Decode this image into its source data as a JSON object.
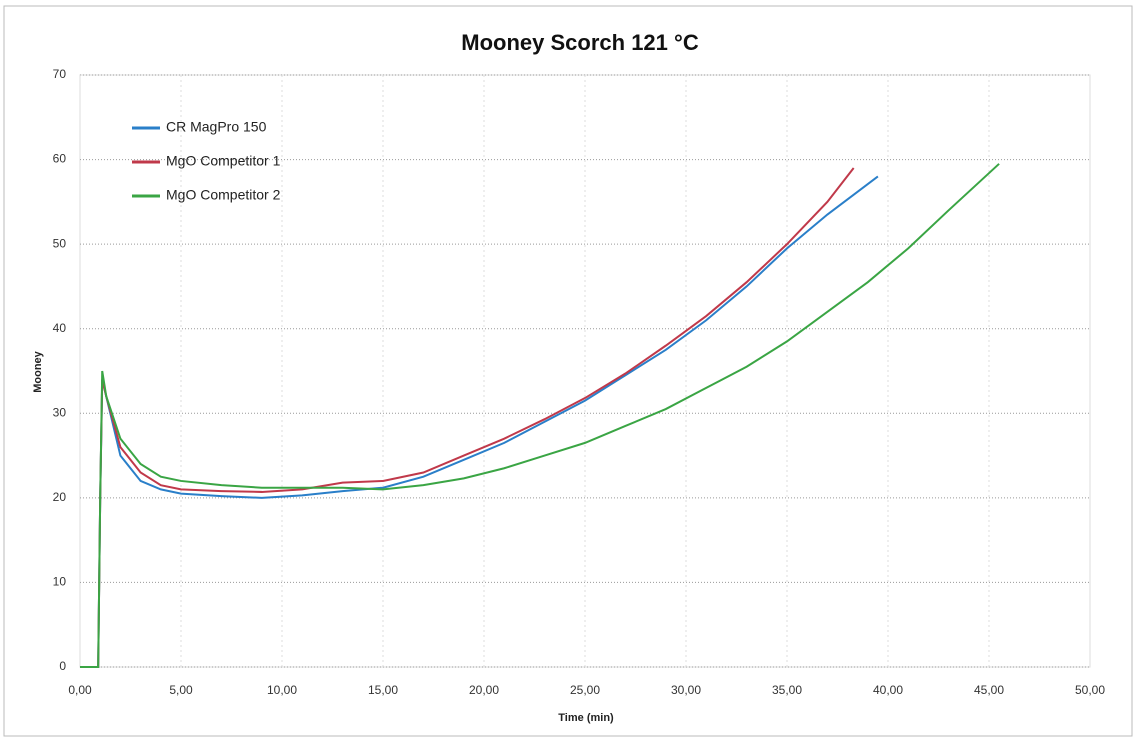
{
  "chart_data": {
    "type": "line",
    "title": "Mooney Scorch 121 °C",
    "xlabel": "Time (min)",
    "ylabel": "Mooney",
    "xlim": [
      0,
      50
    ],
    "xticks": [
      {
        "value": 0,
        "label": "0,00"
      },
      {
        "value": 5,
        "label": "5,00"
      },
      {
        "value": 10,
        "label": "10,00"
      },
      {
        "value": 15,
        "label": "15,00"
      },
      {
        "value": 20,
        "label": "20,00"
      },
      {
        "value": 25,
        "label": "25,00"
      },
      {
        "value": 30,
        "label": "30,00"
      },
      {
        "value": 35,
        "label": "35,00"
      },
      {
        "value": 40,
        "label": "40,00"
      },
      {
        "value": 45,
        "label": "45,00"
      },
      {
        "value": 50,
        "label": "50,00"
      }
    ],
    "ylim": [
      0,
      70
    ],
    "yticks": [
      0,
      10,
      20,
      30,
      40,
      50,
      60,
      70
    ],
    "grid": true,
    "legend": "upper left",
    "series": [
      {
        "name": "CR MagPro 150",
        "color": "#2a7fc9",
        "x": [
          0,
          0.9,
          1.0,
          1.1,
          1.3,
          2,
          3,
          4,
          5,
          7,
          9,
          11,
          13,
          15,
          17,
          19,
          21,
          23,
          25,
          27,
          29,
          31,
          33,
          35,
          37,
          39.5
        ],
        "values": [
          0,
          0,
          20,
          34,
          32,
          25,
          22,
          21,
          20.5,
          20.2,
          20,
          20.3,
          20.8,
          21.2,
          22.5,
          24.5,
          26.5,
          29,
          31.5,
          34.5,
          37.5,
          41,
          45,
          49.5,
          53.5,
          58
        ]
      },
      {
        "name": "MgO Competitor 1",
        "color": "#c0394a",
        "x": [
          0,
          0.9,
          1.0,
          1.1,
          1.3,
          2,
          3,
          4,
          5,
          7,
          9,
          11,
          13,
          15,
          17,
          19,
          21,
          23,
          25,
          27,
          29,
          31,
          33,
          35,
          37,
          38.3
        ],
        "values": [
          0,
          0,
          20,
          34,
          32,
          26,
          23,
          21.5,
          21,
          20.8,
          20.7,
          21,
          21.8,
          22,
          23,
          25,
          27,
          29.3,
          31.8,
          34.7,
          38,
          41.5,
          45.5,
          50,
          55,
          59
        ]
      },
      {
        "name": "MgO Competitor 2",
        "color": "#3aa544",
        "x": [
          0,
          0.9,
          1.0,
          1.1,
          1.3,
          2,
          3,
          4,
          5,
          7,
          9,
          11,
          13,
          15,
          17,
          19,
          21,
          23,
          25,
          27,
          29,
          31,
          33,
          35,
          37,
          39,
          41,
          43,
          45.5
        ],
        "values": [
          0,
          0,
          20,
          35,
          32,
          27,
          24,
          22.5,
          22,
          21.5,
          21.2,
          21.2,
          21.2,
          21,
          21.5,
          22.3,
          23.5,
          25,
          26.5,
          28.5,
          30.5,
          33,
          35.5,
          38.5,
          42,
          45.5,
          49.5,
          54,
          59.5
        ]
      }
    ]
  }
}
